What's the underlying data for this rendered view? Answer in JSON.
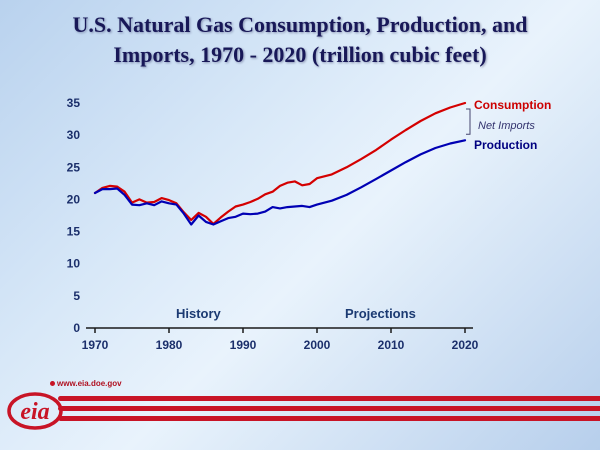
{
  "title": {
    "line1": "U.S. Natural Gas Consumption, Production, and",
    "line2": "Imports, 1970 - 2020 (trillion cubic feet)"
  },
  "chart_data": {
    "type": "line",
    "title": "U.S. Natural Gas Consumption, Production, and Imports, 1970 - 2020",
    "ylabel": "trillion cubic feet",
    "xlabel": "",
    "xlim": [
      1970,
      2020
    ],
    "ylim": [
      0,
      35
    ],
    "x_ticks": [
      1970,
      1980,
      1990,
      2000,
      2010,
      2020
    ],
    "y_ticks": [
      0,
      5,
      10,
      15,
      20,
      25,
      30,
      35
    ],
    "grid": false,
    "legend_position": "right-of-line-ends",
    "annotations": [
      {
        "text": "History"
      },
      {
        "text": "Projections"
      }
    ],
    "derived_gap_label": "Net Imports",
    "series": [
      {
        "name": "Consumption",
        "color": "#d40000",
        "points": [
          [
            1970,
            21.0
          ],
          [
            1971,
            21.8
          ],
          [
            1972,
            22.1
          ],
          [
            1973,
            22.0
          ],
          [
            1974,
            21.2
          ],
          [
            1975,
            19.5
          ],
          [
            1976,
            20.0
          ],
          [
            1977,
            19.5
          ],
          [
            1978,
            19.6
          ],
          [
            1979,
            20.2
          ],
          [
            1980,
            19.9
          ],
          [
            1981,
            19.4
          ],
          [
            1982,
            18.0
          ],
          [
            1983,
            16.8
          ],
          [
            1984,
            17.9
          ],
          [
            1985,
            17.3
          ],
          [
            1986,
            16.2
          ],
          [
            1987,
            17.2
          ],
          [
            1988,
            18.1
          ],
          [
            1989,
            18.9
          ],
          [
            1990,
            19.2
          ],
          [
            1991,
            19.6
          ],
          [
            1992,
            20.1
          ],
          [
            1993,
            20.8
          ],
          [
            1994,
            21.2
          ],
          [
            1995,
            22.1
          ],
          [
            1996,
            22.6
          ],
          [
            1997,
            22.8
          ],
          [
            1998,
            22.2
          ],
          [
            1999,
            22.4
          ],
          [
            2000,
            23.3
          ],
          [
            2002,
            23.9
          ],
          [
            2004,
            25.0
          ],
          [
            2006,
            26.3
          ],
          [
            2008,
            27.7
          ],
          [
            2010,
            29.3
          ],
          [
            2012,
            30.8
          ],
          [
            2014,
            32.2
          ],
          [
            2016,
            33.4
          ],
          [
            2018,
            34.3
          ],
          [
            2020,
            35.0
          ]
        ]
      },
      {
        "name": "Production",
        "color": "#0000b4",
        "points": [
          [
            1970,
            21.0
          ],
          [
            1971,
            21.6
          ],
          [
            1972,
            21.6
          ],
          [
            1973,
            21.7
          ],
          [
            1974,
            20.7
          ],
          [
            1975,
            19.2
          ],
          [
            1976,
            19.1
          ],
          [
            1977,
            19.4
          ],
          [
            1978,
            19.1
          ],
          [
            1979,
            19.7
          ],
          [
            1980,
            19.4
          ],
          [
            1981,
            19.2
          ],
          [
            1982,
            17.8
          ],
          [
            1983,
            16.1
          ],
          [
            1984,
            17.5
          ],
          [
            1985,
            16.5
          ],
          [
            1986,
            16.1
          ],
          [
            1987,
            16.6
          ],
          [
            1988,
            17.1
          ],
          [
            1989,
            17.3
          ],
          [
            1990,
            17.8
          ],
          [
            1991,
            17.7
          ],
          [
            1992,
            17.8
          ],
          [
            1993,
            18.1
          ],
          [
            1994,
            18.8
          ],
          [
            1995,
            18.6
          ],
          [
            1996,
            18.8
          ],
          [
            1997,
            18.9
          ],
          [
            1998,
            19.0
          ],
          [
            1999,
            18.8
          ],
          [
            2000,
            19.2
          ],
          [
            2002,
            19.8
          ],
          [
            2004,
            20.7
          ],
          [
            2006,
            21.9
          ],
          [
            2008,
            23.2
          ],
          [
            2010,
            24.5
          ],
          [
            2012,
            25.8
          ],
          [
            2014,
            27.0
          ],
          [
            2016,
            28.0
          ],
          [
            2018,
            28.7
          ],
          [
            2020,
            29.2
          ]
        ]
      }
    ]
  },
  "legend": {
    "consumption": {
      "label": "Consumption",
      "color": "#cc0000"
    },
    "net_imports": {
      "label": "Net Imports",
      "color": "#33336e"
    },
    "production": {
      "label": "Production",
      "color": "#000080"
    }
  },
  "footer": {
    "logo_text": "eia",
    "url": "www.eia.doe.gov"
  }
}
